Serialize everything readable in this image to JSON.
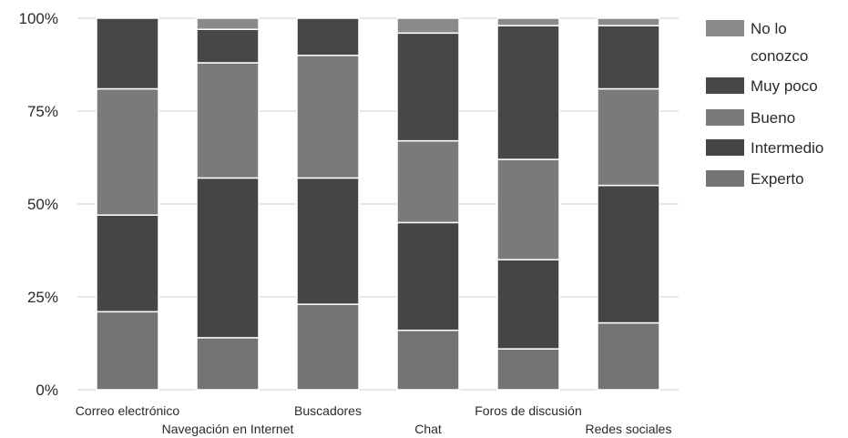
{
  "chart_data": {
    "type": "bar",
    "stacked": "percent",
    "categories": [
      "Correo electrónico",
      "Navegación en Internet",
      "Buscadores",
      "Chat",
      "Foros de discusión",
      "Redes sociales"
    ],
    "series": [
      {
        "name": "Experto",
        "color": "#747474",
        "values": [
          21,
          14,
          23,
          16,
          11,
          18
        ]
      },
      {
        "name": "Intermedio",
        "color": "#454545",
        "values": [
          26,
          43,
          34,
          29,
          24,
          37
        ]
      },
      {
        "name": "Bueno",
        "color": "#7a7a7a",
        "values": [
          34,
          31,
          33,
          22,
          27,
          26
        ]
      },
      {
        "name": "Muy poco",
        "color": "#474747",
        "values": [
          19,
          9,
          10,
          29,
          36,
          17
        ]
      },
      {
        "name": "No lo conozco",
        "color": "#8a8a8a",
        "values": [
          0,
          3,
          0,
          4,
          2,
          2
        ]
      }
    ],
    "legend_lines": [
      [
        "No lo",
        "conozco"
      ],
      [
        "Muy poco"
      ],
      [
        "Bueno"
      ],
      [
        "Intermedio"
      ],
      [
        "Experto"
      ]
    ],
    "y_ticks": [
      "0%",
      "25%",
      "50%",
      "75%",
      "100%"
    ],
    "ylim": [
      0,
      100
    ],
    "grid": true,
    "legend_position": "right"
  }
}
